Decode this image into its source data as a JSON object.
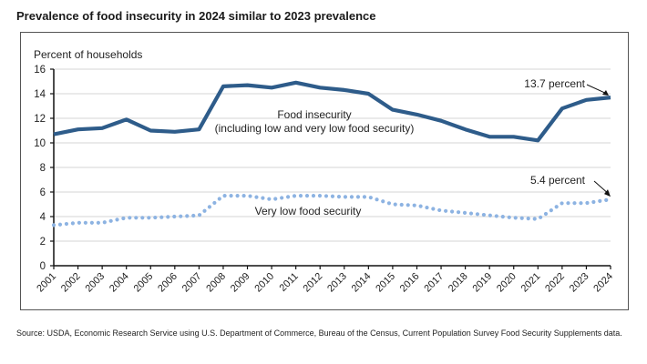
{
  "title": "Prevalence of food insecurity in 2024 similar to 2023 prevalence",
  "source": "Source: USDA, Economic Research Service using U.S. Department of Commerce, Bureau of the Census, Current Population Survey Food Security Supplements data.",
  "chart_data": {
    "type": "line",
    "title": "Prevalence of food insecurity in 2024 similar to 2023 prevalence",
    "xlabel": "",
    "ylabel": "Percent of households",
    "ylim": [
      0,
      16
    ],
    "yticks": [
      0,
      2,
      4,
      6,
      8,
      10,
      12,
      14,
      16
    ],
    "grid": true,
    "x": [
      "2001",
      "2002",
      "2003",
      "2004",
      "2005",
      "2006",
      "2007",
      "2008",
      "2009",
      "2010",
      "2011",
      "2012",
      "2013",
      "2014",
      "2015",
      "2016",
      "2017",
      "2018",
      "2019",
      "2020",
      "2021",
      "2022",
      "2023",
      "2024"
    ],
    "series": [
      {
        "name": "Food insecurity",
        "label_lines": [
          "Food insecurity",
          "(including low and very low food security)"
        ],
        "style": "solid",
        "color": "#2E5C8A",
        "values": [
          10.7,
          11.1,
          11.2,
          11.9,
          11.0,
          10.9,
          11.1,
          14.6,
          14.7,
          14.5,
          14.9,
          14.5,
          14.3,
          14.0,
          12.7,
          12.3,
          11.8,
          11.1,
          10.5,
          10.5,
          10.2,
          12.8,
          13.5,
          13.7
        ]
      },
      {
        "name": "Very low food security",
        "label_lines": [
          "Very low food security"
        ],
        "style": "dotted",
        "color": "#8DB3E2",
        "values": [
          3.3,
          3.5,
          3.5,
          3.9,
          3.9,
          4.0,
          4.1,
          5.7,
          5.7,
          5.4,
          5.7,
          5.7,
          5.6,
          5.6,
          5.0,
          4.9,
          4.5,
          4.3,
          4.1,
          3.9,
          3.8,
          5.1,
          5.1,
          5.4
        ]
      }
    ],
    "annotations": [
      {
        "text": "13.7 percent",
        "series": 0,
        "x": "2024",
        "value": 13.7
      },
      {
        "text": "5.4 percent",
        "series": 1,
        "x": "2024",
        "value": 5.4
      }
    ]
  }
}
